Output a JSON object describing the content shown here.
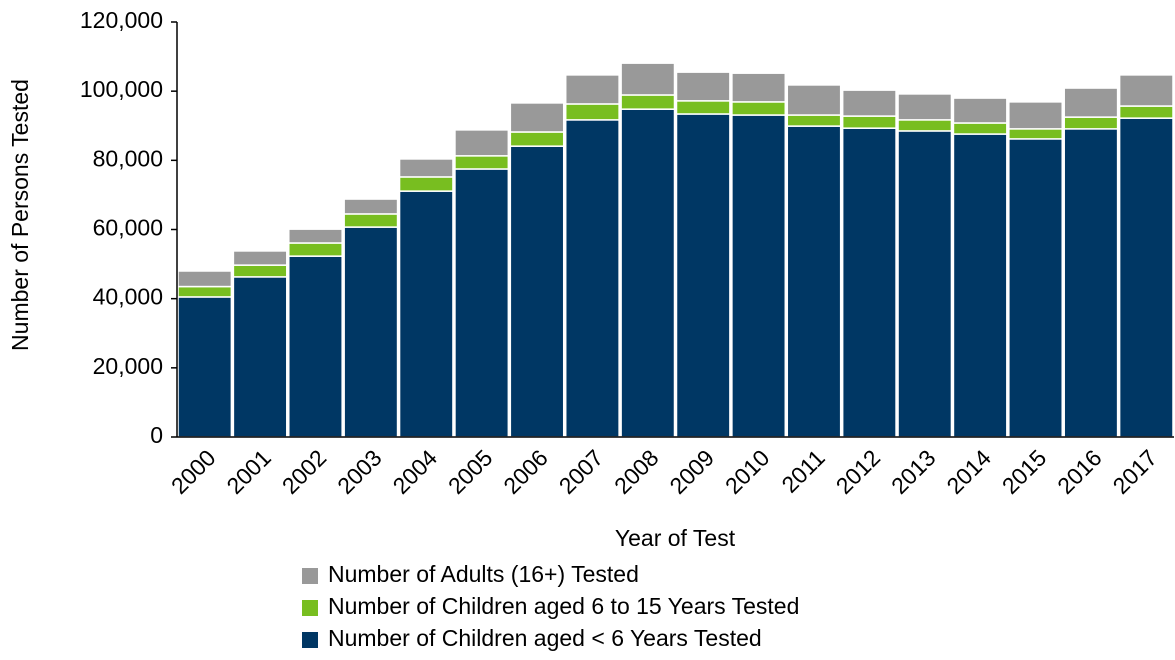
{
  "chart_data": {
    "type": "stacked-bar",
    "x_label": "Year of Test",
    "y_label": "Number of Persons Tested",
    "categories": [
      "2000",
      "2001",
      "2002",
      "2003",
      "2004",
      "2005",
      "2006",
      "2007",
      "2008",
      "2009",
      "2010",
      "2011",
      "2012",
      "2013",
      "2014",
      "2015",
      "2016",
      "2017"
    ],
    "series": [
      {
        "name": "Number of Children aged < 6 Years Tested",
        "color": "#003764",
        "values": [
          40500,
          46300,
          52300,
          60700,
          71100,
          77500,
          84100,
          91700,
          94800,
          93400,
          93100,
          89900,
          89300,
          88500,
          87600,
          86200,
          89100,
          92200
        ]
      },
      {
        "name": "Number of Children aged 6 to 15 Years Tested",
        "color": "#78be20",
        "values": [
          3000,
          3400,
          3800,
          3800,
          4100,
          3800,
          4100,
          4600,
          4100,
          3800,
          3800,
          3200,
          3500,
          3200,
          3200,
          2900,
          3400,
          3500
        ]
      },
      {
        "name": "Number of Adults (16+) Tested",
        "color": "#999999",
        "values": [
          4500,
          4100,
          4000,
          4300,
          5200,
          7500,
          8400,
          8400,
          9200,
          8300,
          8300,
          8700,
          7500,
          7500,
          7200,
          7800,
          8400,
          9000
        ]
      }
    ],
    "ylim": [
      0,
      120000
    ],
    "yticks": [
      0,
      {
        "value": 20000,
        "label": "20,000"
      },
      {
        "value": 40000,
        "label": "40,000"
      },
      {
        "value": 60000,
        "label": "60,000"
      },
      {
        "value": 80000,
        "label": "80,000"
      },
      {
        "value": 100000,
        "label": "100,000"
      },
      {
        "value": 120000,
        "label": "120,000"
      }
    ]
  }
}
